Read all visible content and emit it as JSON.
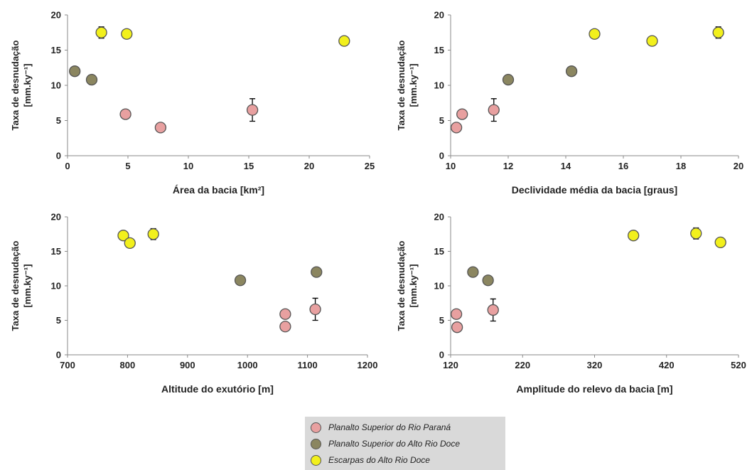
{
  "legend": {
    "items": [
      {
        "label": "Planalto Superior do Rio Paraná",
        "color": "#e8a0a0"
      },
      {
        "label": "Planalto Superior do Alto Rio Doce",
        "color": "#8b8660"
      },
      {
        "label": "Escarpas do Alto Rio Doce",
        "color": "#f2f01c"
      }
    ]
  },
  "chart_data": [
    {
      "type": "scatter",
      "xlabel": "Área da bacia [km²]",
      "ylabel_lines": [
        "Taxa de desnudação",
        "[mm.ky⁻¹]"
      ],
      "xlim": [
        0,
        25
      ],
      "ylim": [
        0,
        20
      ],
      "xticks": [
        0,
        5,
        10,
        15,
        20,
        25
      ],
      "yticks": [
        0,
        5,
        10,
        15,
        20
      ],
      "series": [
        {
          "color": "#e8a0a0",
          "points": [
            {
              "x": 4.8,
              "y": 5.9
            },
            {
              "x": 7.7,
              "y": 4.0
            },
            {
              "x": 15.3,
              "y": 6.5,
              "err": 1.6
            }
          ]
        },
        {
          "color": "#8b8660",
          "points": [
            {
              "x": 0.6,
              "y": 12.0
            },
            {
              "x": 2.0,
              "y": 10.8
            }
          ]
        },
        {
          "color": "#f2f01c",
          "points": [
            {
              "x": 2.8,
              "y": 17.5,
              "err": 0.8
            },
            {
              "x": 4.9,
              "y": 17.3
            },
            {
              "x": 22.9,
              "y": 16.3
            }
          ]
        }
      ]
    },
    {
      "type": "scatter",
      "xlabel": "Declividade média da bacia [graus]",
      "ylabel_lines": [
        "Taxa de desnudação",
        "[mm.ky⁻¹]"
      ],
      "xlim": [
        10,
        20
      ],
      "ylim": [
        0,
        20
      ],
      "xticks": [
        10,
        12,
        14,
        16,
        18,
        20
      ],
      "yticks": [
        0,
        5,
        10,
        15,
        20
      ],
      "series": [
        {
          "color": "#e8a0a0",
          "points": [
            {
              "x": 10.2,
              "y": 4.0
            },
            {
              "x": 10.4,
              "y": 5.9
            },
            {
              "x": 11.5,
              "y": 6.5,
              "err": 1.6
            }
          ]
        },
        {
          "color": "#8b8660",
          "points": [
            {
              "x": 12.0,
              "y": 10.8
            },
            {
              "x": 14.2,
              "y": 12.0
            }
          ]
        },
        {
          "color": "#f2f01c",
          "points": [
            {
              "x": 15.0,
              "y": 17.3
            },
            {
              "x": 17.0,
              "y": 16.3
            },
            {
              "x": 19.3,
              "y": 17.5,
              "err": 0.8
            }
          ]
        }
      ]
    },
    {
      "type": "scatter",
      "xlabel": "Altitude do exutório [m]",
      "ylabel_lines": [
        "Taxa de desnudação",
        "[mm.ky⁻¹]"
      ],
      "xlim": [
        700,
        1200
      ],
      "ylim": [
        0,
        20
      ],
      "xticks": [
        700,
        800,
        900,
        1000,
        1100,
        1200
      ],
      "yticks": [
        0,
        5,
        10,
        15,
        20
      ],
      "series": [
        {
          "color": "#e8a0a0",
          "points": [
            {
              "x": 1063,
              "y": 5.9
            },
            {
              "x": 1063,
              "y": 4.1
            },
            {
              "x": 1113,
              "y": 6.6,
              "err": 1.6
            }
          ]
        },
        {
          "color": "#8b8660",
          "points": [
            {
              "x": 988,
              "y": 10.8
            },
            {
              "x": 1115,
              "y": 12.0
            }
          ]
        },
        {
          "color": "#f2f01c",
          "points": [
            {
              "x": 793,
              "y": 17.3
            },
            {
              "x": 804,
              "y": 16.2
            },
            {
              "x": 843,
              "y": 17.5,
              "err": 0.8
            }
          ]
        }
      ]
    },
    {
      "type": "scatter",
      "xlabel": "Amplitude do relevo da bacia [m]",
      "ylabel_lines": [
        "Taxa de desnudação",
        "[mm.ky⁻¹]"
      ],
      "xlim": [
        120,
        520
      ],
      "ylim": [
        0,
        20
      ],
      "xticks": [
        120,
        220,
        320,
        420,
        520
      ],
      "yticks": [
        0,
        5,
        10,
        15,
        20
      ],
      "series": [
        {
          "color": "#e8a0a0",
          "points": [
            {
              "x": 128,
              "y": 5.9
            },
            {
              "x": 129,
              "y": 4.0
            },
            {
              "x": 179,
              "y": 6.5,
              "err": 1.6
            }
          ]
        },
        {
          "color": "#8b8660",
          "points": [
            {
              "x": 151,
              "y": 12.0
            },
            {
              "x": 172,
              "y": 10.8
            }
          ]
        },
        {
          "color": "#f2f01c",
          "points": [
            {
              "x": 374,
              "y": 17.3
            },
            {
              "x": 461,
              "y": 17.6,
              "err": 0.8
            },
            {
              "x": 495,
              "y": 16.3
            }
          ]
        }
      ]
    }
  ]
}
